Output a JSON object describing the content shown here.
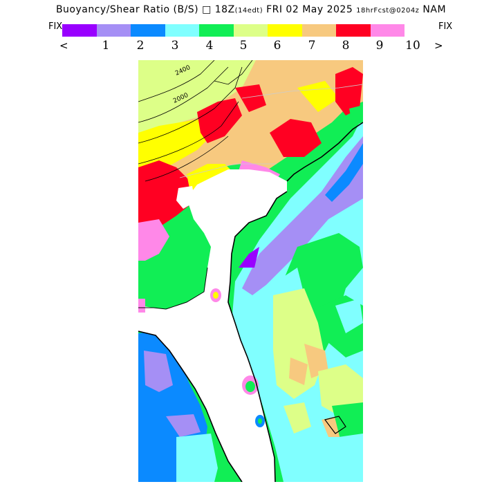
{
  "header": {
    "title_main": "Buoyancy/Shear Ratio (B/S) ",
    "title_box": "□",
    "title_time": " 18Z",
    "title_edt": "(14edt)",
    "title_date": " FRI 02 May 2025 ",
    "title_fcst": "18hrFcst@0204z",
    "title_model": " NAM"
  },
  "legend": {
    "fix_left": "FIX",
    "fix_right": "FIX",
    "arrow_left": "<",
    "arrow_right": ">",
    "ticks": [
      "1",
      "2",
      "3",
      "4",
      "5",
      "6",
      "7",
      "8",
      "9",
      "10"
    ],
    "colors": [
      "#9900ff",
      "#a58ff5",
      "#0b8aff",
      "#80ffff",
      "#11ee55",
      "#ddff88",
      "#ffff00",
      "#f7c97f",
      "#ff0022",
      "#ff88e8"
    ]
  },
  "map": {
    "contour_labels": [
      "2400",
      "2000"
    ]
  }
}
